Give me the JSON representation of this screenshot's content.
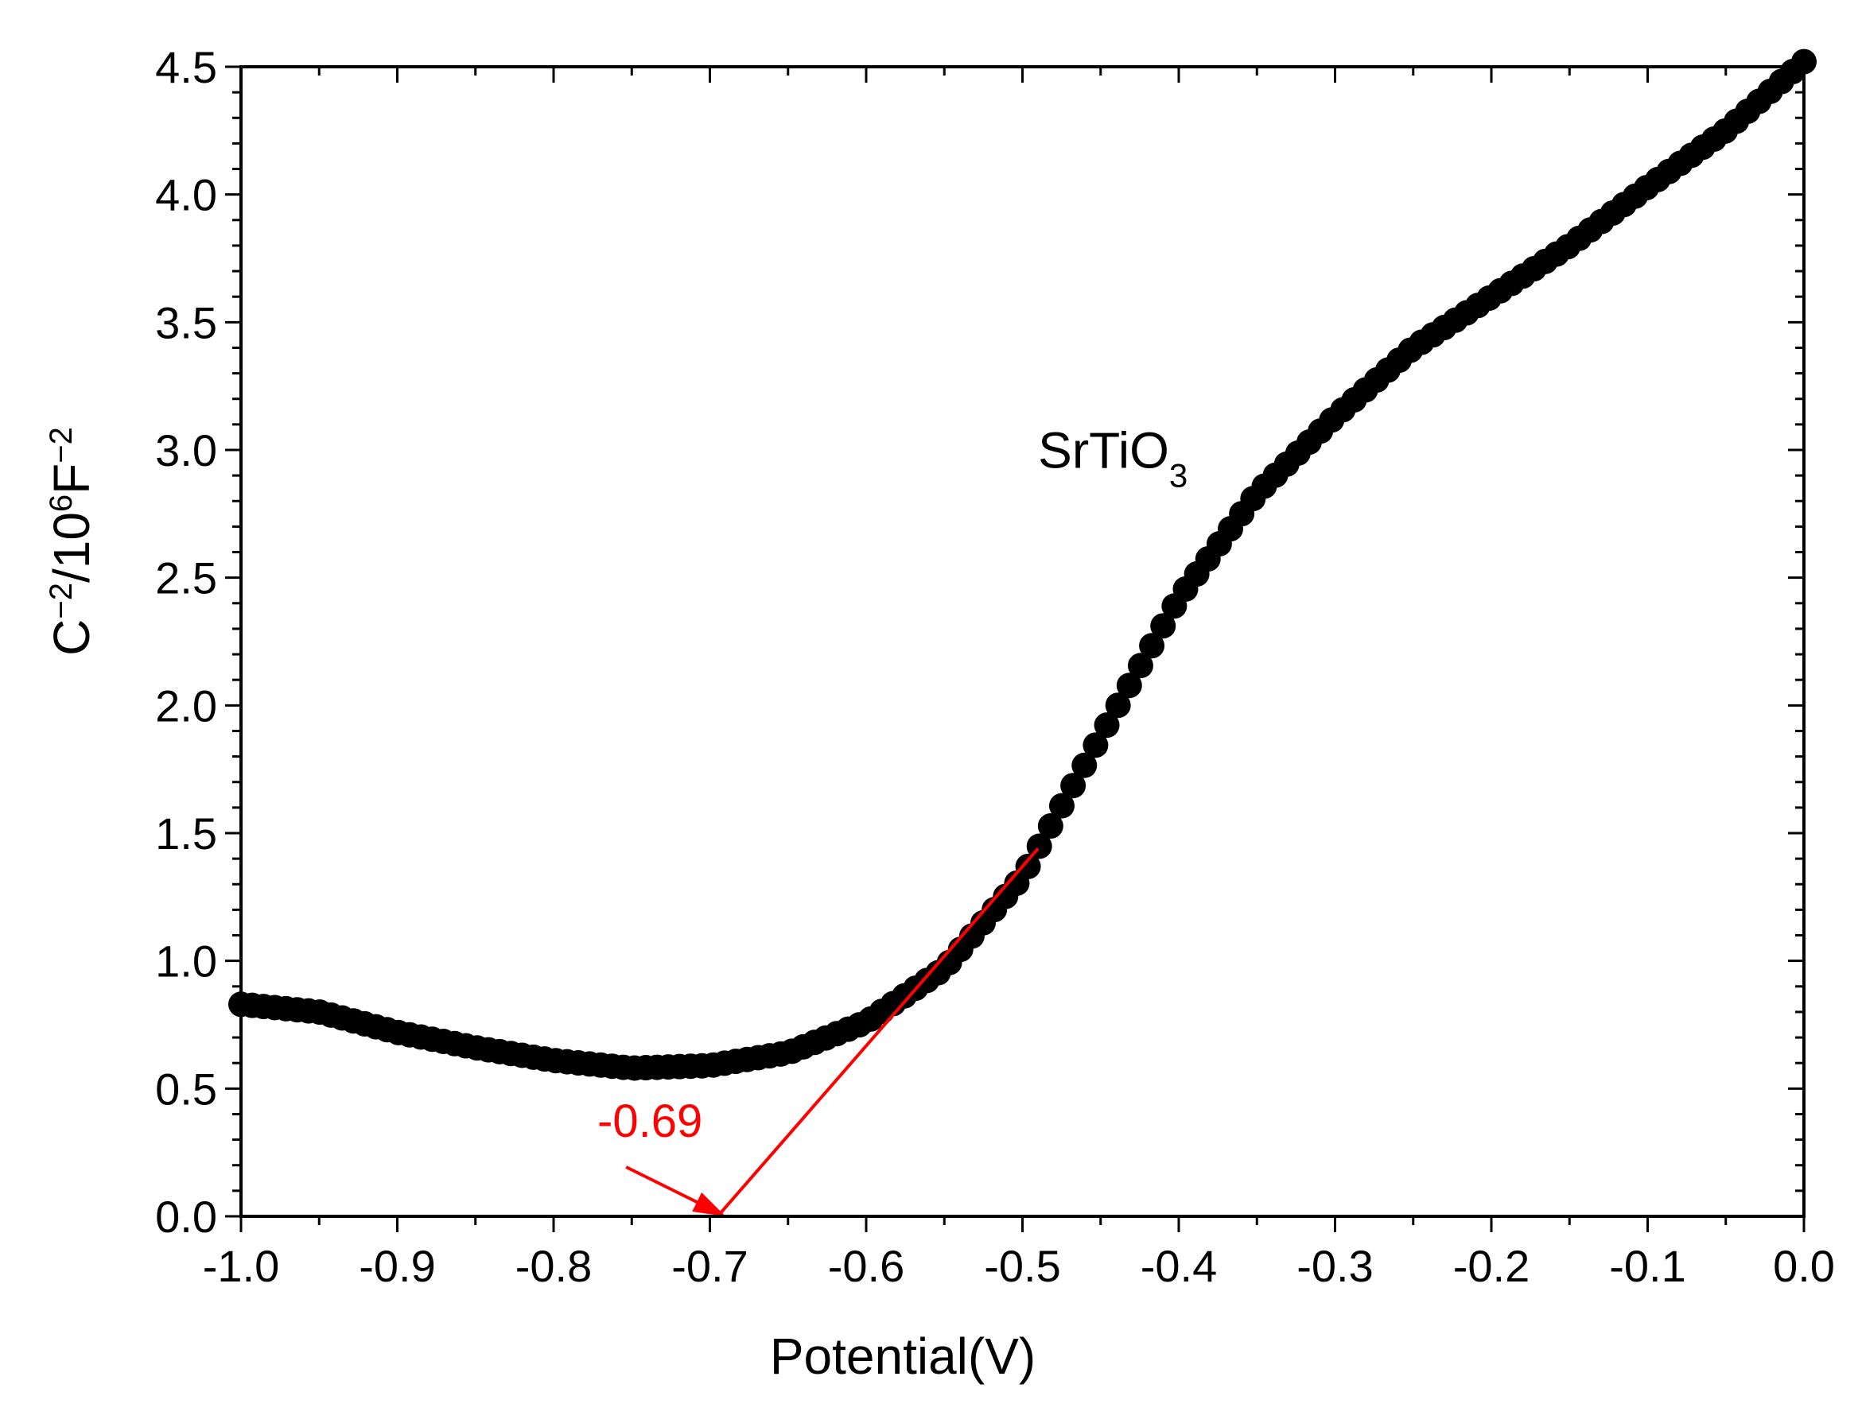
{
  "chart_data": {
    "type": "scatter",
    "title": "",
    "xlabel": "Potential(V)",
    "ylabel": {
      "base": "C",
      "exp1": "−2",
      "mid": "/10",
      "exp2": "6",
      "unit": "F",
      "exp3": "−2"
    },
    "xlim": [
      -1.0,
      0.0
    ],
    "ylim": [
      0.0,
      4.5
    ],
    "x_ticks": [
      -1.0,
      -0.9,
      -0.8,
      -0.7,
      -0.6,
      -0.5,
      -0.4,
      -0.3,
      -0.2,
      -0.1,
      0.0
    ],
    "x_tick_labels": [
      "-1.0",
      "-0.9",
      "-0.8",
      "-0.7",
      "-0.6",
      "-0.5",
      "-0.4",
      "-0.3",
      "-0.2",
      "-0.1",
      "0.0"
    ],
    "y_ticks": [
      0.0,
      0.5,
      1.0,
      1.5,
      2.0,
      2.5,
      3.0,
      3.5,
      4.0,
      4.5
    ],
    "y_tick_labels": [
      "0.0",
      "0.5",
      "1.0",
      "1.5",
      "2.0",
      "2.5",
      "3.0",
      "3.5",
      "4.0",
      "4.5"
    ],
    "grid": false,
    "series": [
      {
        "name": "SrTiO3",
        "color": "#000000",
        "marker": "circle",
        "curve_knots": [
          [
            -1.0,
            0.83
          ],
          [
            -0.95,
            0.8
          ],
          [
            -0.9,
            0.72
          ],
          [
            -0.85,
            0.66
          ],
          [
            -0.8,
            0.61
          ],
          [
            -0.75,
            0.58
          ],
          [
            -0.7,
            0.59
          ],
          [
            -0.65,
            0.64
          ],
          [
            -0.6,
            0.76
          ],
          [
            -0.55,
            0.97
          ],
          [
            -0.5,
            1.33
          ],
          [
            -0.45,
            1.88
          ],
          [
            -0.4,
            2.42
          ],
          [
            -0.35,
            2.83
          ],
          [
            -0.3,
            3.13
          ],
          [
            -0.25,
            3.4
          ],
          [
            -0.2,
            3.6
          ],
          [
            -0.15,
            3.8
          ],
          [
            -0.1,
            4.03
          ],
          [
            -0.05,
            4.25
          ],
          [
            0.0,
            4.52
          ]
        ],
        "point_count": 140
      }
    ],
    "annotations": {
      "series_label": {
        "main": "SrTiO",
        "sub": "3",
        "x": -0.49,
        "y": 2.93
      },
      "fit_line": {
        "color": "#ff0000",
        "from": [
          -0.695,
          0.0
        ],
        "to": [
          -0.49,
          1.44
        ]
      },
      "intercept": {
        "text": "-0.69",
        "color": "#ff0000",
        "x": -0.69,
        "y": 0.0
      }
    }
  }
}
